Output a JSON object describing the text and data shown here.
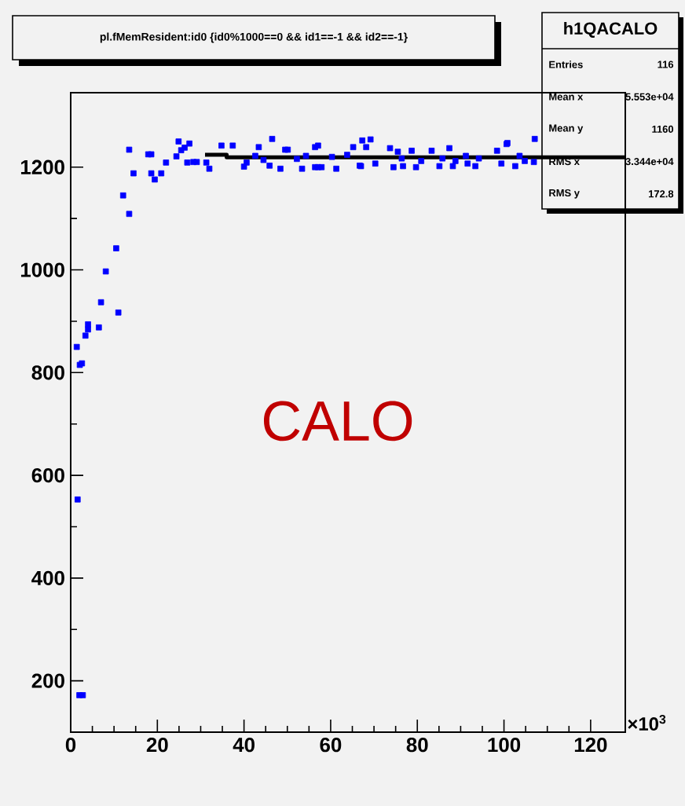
{
  "chart_data": {
    "type": "scatter",
    "title": "pl.fMemResident:id0 {id0%1000==0 && id1==-1 && id2==-1}",
    "xlim": [
      0,
      128
    ],
    "ylim": [
      100,
      1345
    ],
    "xticks": [
      0,
      20,
      40,
      60,
      80,
      100,
      120
    ],
    "yticks": [
      200,
      400,
      600,
      800,
      1000,
      1200
    ],
    "grid": false,
    "marker": "square",
    "annotations": [
      "CALO",
      "×10$^{3}$",
      "h1QACALO",
      "Entries",
      "116",
      "Mean x",
      "5.553e+04",
      "Mean y",
      "1160",
      "RMS x",
      "3.344e+04",
      "RMS y",
      "172.8"
    ],
    "series": [
      {
        "color": "#0000ff",
        "x": [
          1.4,
          1.6,
          2.0,
          2.8,
          2.1,
          2.6,
          3.4,
          4.0,
          4.0,
          6.5,
          7.0,
          8.1,
          10.5,
          11.0,
          12.1,
          13.5,
          13.5,
          14.5,
          17.9,
          18.6,
          18.6,
          19.4,
          20.9,
          22.0,
          24.4,
          24.9,
          25.5,
          26.3,
          26.9,
          27.4,
          28.3,
          29.1,
          31.3,
          32.0,
          34.8,
          37.4,
          40.0,
          40.6,
          42.6,
          43.4,
          44.5,
          45.9,
          46.5,
          48.4,
          49.5,
          50.1,
          52.2,
          53.4,
          54.3,
          56.4,
          57.1,
          56.4,
          57.1,
          57.9,
          60.3,
          61.3,
          63.8,
          65.2,
          66.7,
          67.0,
          67.3,
          68.2,
          69.2,
          70.3,
          73.7,
          74.5,
          75.5,
          76.4,
          76.7,
          78.7,
          79.7,
          80.9,
          83.3,
          85.1,
          85.8,
          87.4,
          88.2,
          88.8,
          91.2,
          91.6,
          93.4,
          94.2,
          98.4,
          99.4,
          100.6,
          100.8,
          102.6,
          103.6,
          104.8,
          106.9,
          107.1
        ],
        "values": [
          850,
          553,
          172,
          172,
          815,
          818,
          872,
          894,
          884,
          888,
          937,
          997,
          1042,
          917,
          1145,
          1109,
          1234,
          1188,
          1225,
          1225,
          1188,
          1176,
          1188,
          1209,
          1221,
          1250,
          1233,
          1238,
          1209,
          1246,
          1210,
          1210,
          1209,
          1197,
          1242,
          1242,
          1201,
          1209,
          1222,
          1239,
          1214,
          1203,
          1255,
          1197,
          1234,
          1234,
          1216,
          1197,
          1222,
          1239,
          1242,
          1200,
          1200,
          1200,
          1220,
          1197,
          1224,
          1239,
          1203,
          1202,
          1252,
          1239,
          1254,
          1207,
          1237,
          1200,
          1230,
          1217,
          1202,
          1232,
          1200,
          1212,
          1232,
          1202,
          1217,
          1237,
          1202,
          1212,
          1222,
          1207,
          1202,
          1217,
          1232,
          1207,
          1245,
          1247,
          1202,
          1222,
          1212,
          1210,
          1255
        ]
      },
      {
        "type": "line",
        "color": "#000000",
        "marker": "none",
        "x": [
          31,
          36,
          36,
          128
        ],
        "values": [
          1224,
          1224,
          1219,
          1219
        ]
      }
    ]
  }
}
